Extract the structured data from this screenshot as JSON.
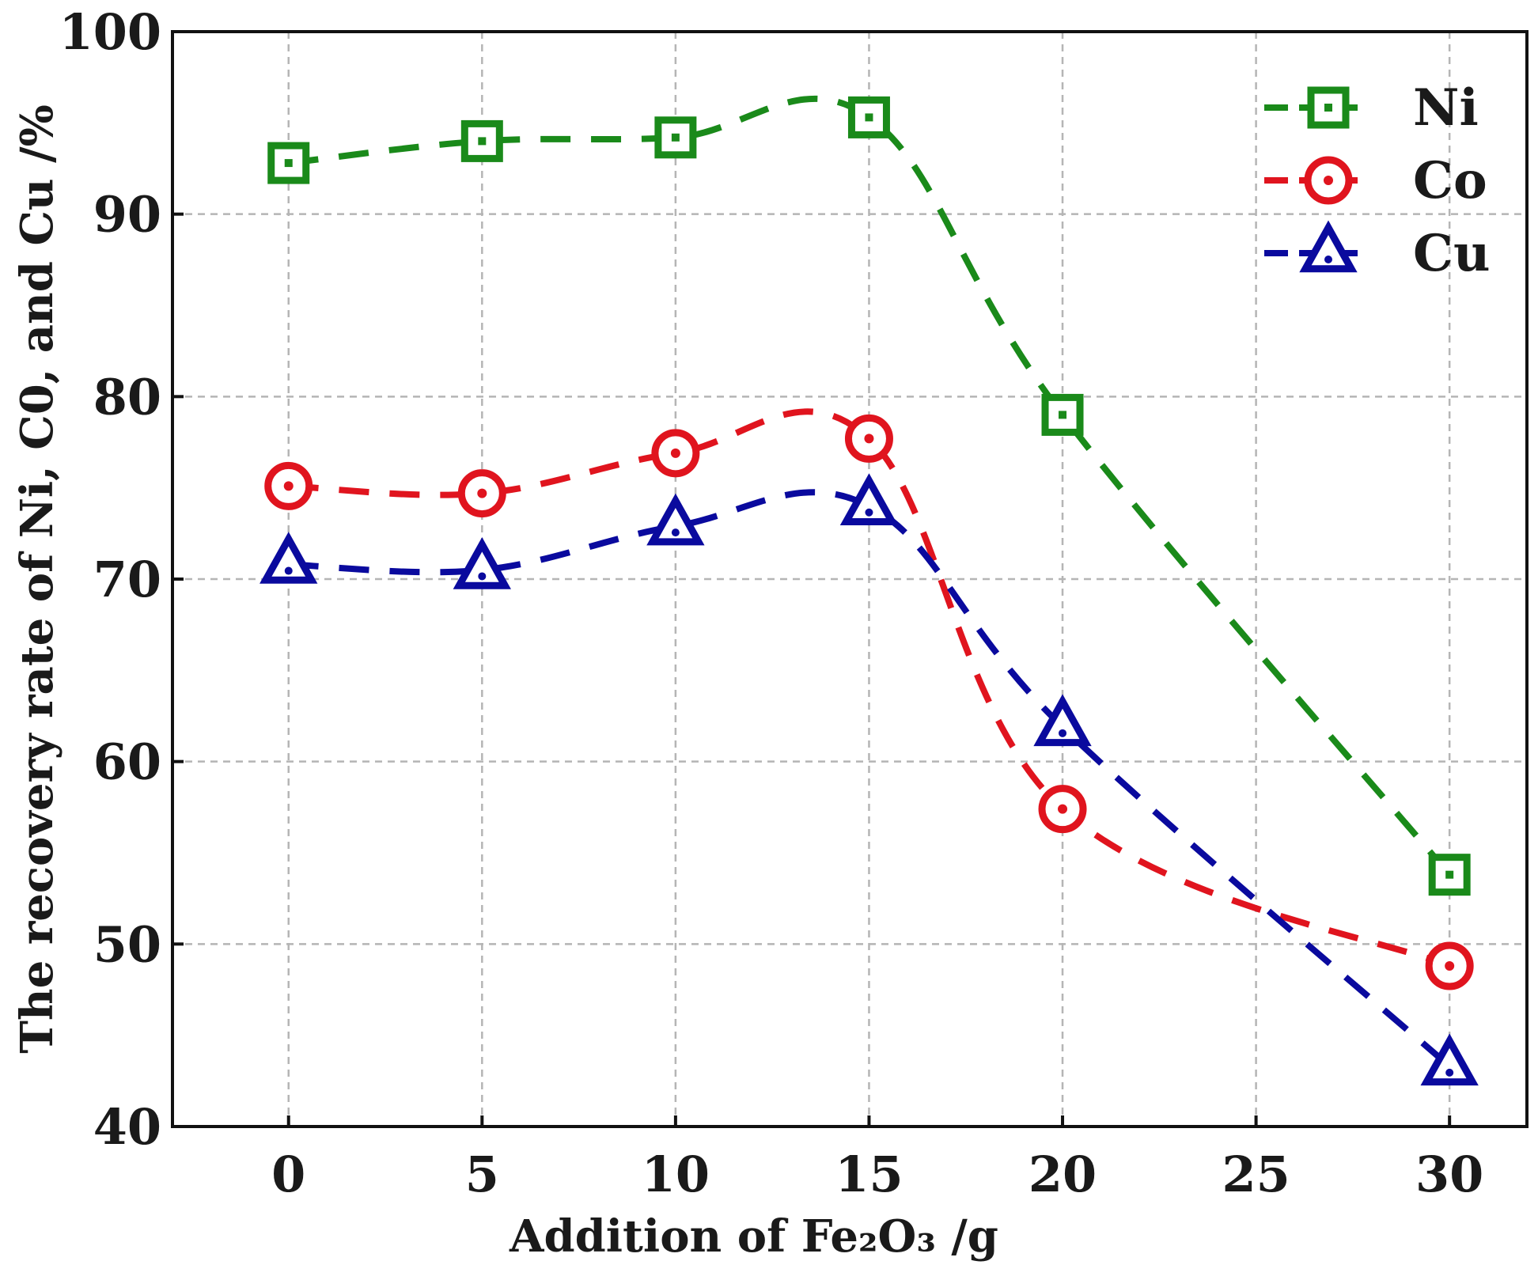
{
  "chart_data": {
    "type": "line",
    "xlabel": "Addition of Fe₂O₃ /g",
    "ylabel": "The recovery rate of  Ni, C0, and Cu /%",
    "xlim": [
      -3,
      32
    ],
    "ylim": [
      40,
      100
    ],
    "xticks": [
      0,
      5,
      10,
      15,
      20,
      25,
      30
    ],
    "yticks": [
      40,
      50,
      60,
      70,
      80,
      90,
      100
    ],
    "grid": true,
    "legend_position": "top-right",
    "series": [
      {
        "name": "Ni",
        "color": "#1a8a1a",
        "marker": "square",
        "x": [
          0,
          5,
          10,
          15,
          20,
          30
        ],
        "y": [
          92.8,
          94.0,
          94.2,
          95.3,
          79.0,
          53.8
        ]
      },
      {
        "name": "Co",
        "color": "#e0141e",
        "marker": "circle",
        "x": [
          0,
          5,
          10,
          15,
          20,
          30
        ],
        "y": [
          75.1,
          74.7,
          76.9,
          77.7,
          57.4,
          48.8
        ]
      },
      {
        "name": "Cu",
        "color": "#0a0a9e",
        "marker": "triangle",
        "x": [
          0,
          5,
          10,
          15,
          20,
          30
        ],
        "y": [
          70.8,
          70.5,
          72.9,
          74.0,
          61.9,
          43.3
        ]
      }
    ]
  }
}
